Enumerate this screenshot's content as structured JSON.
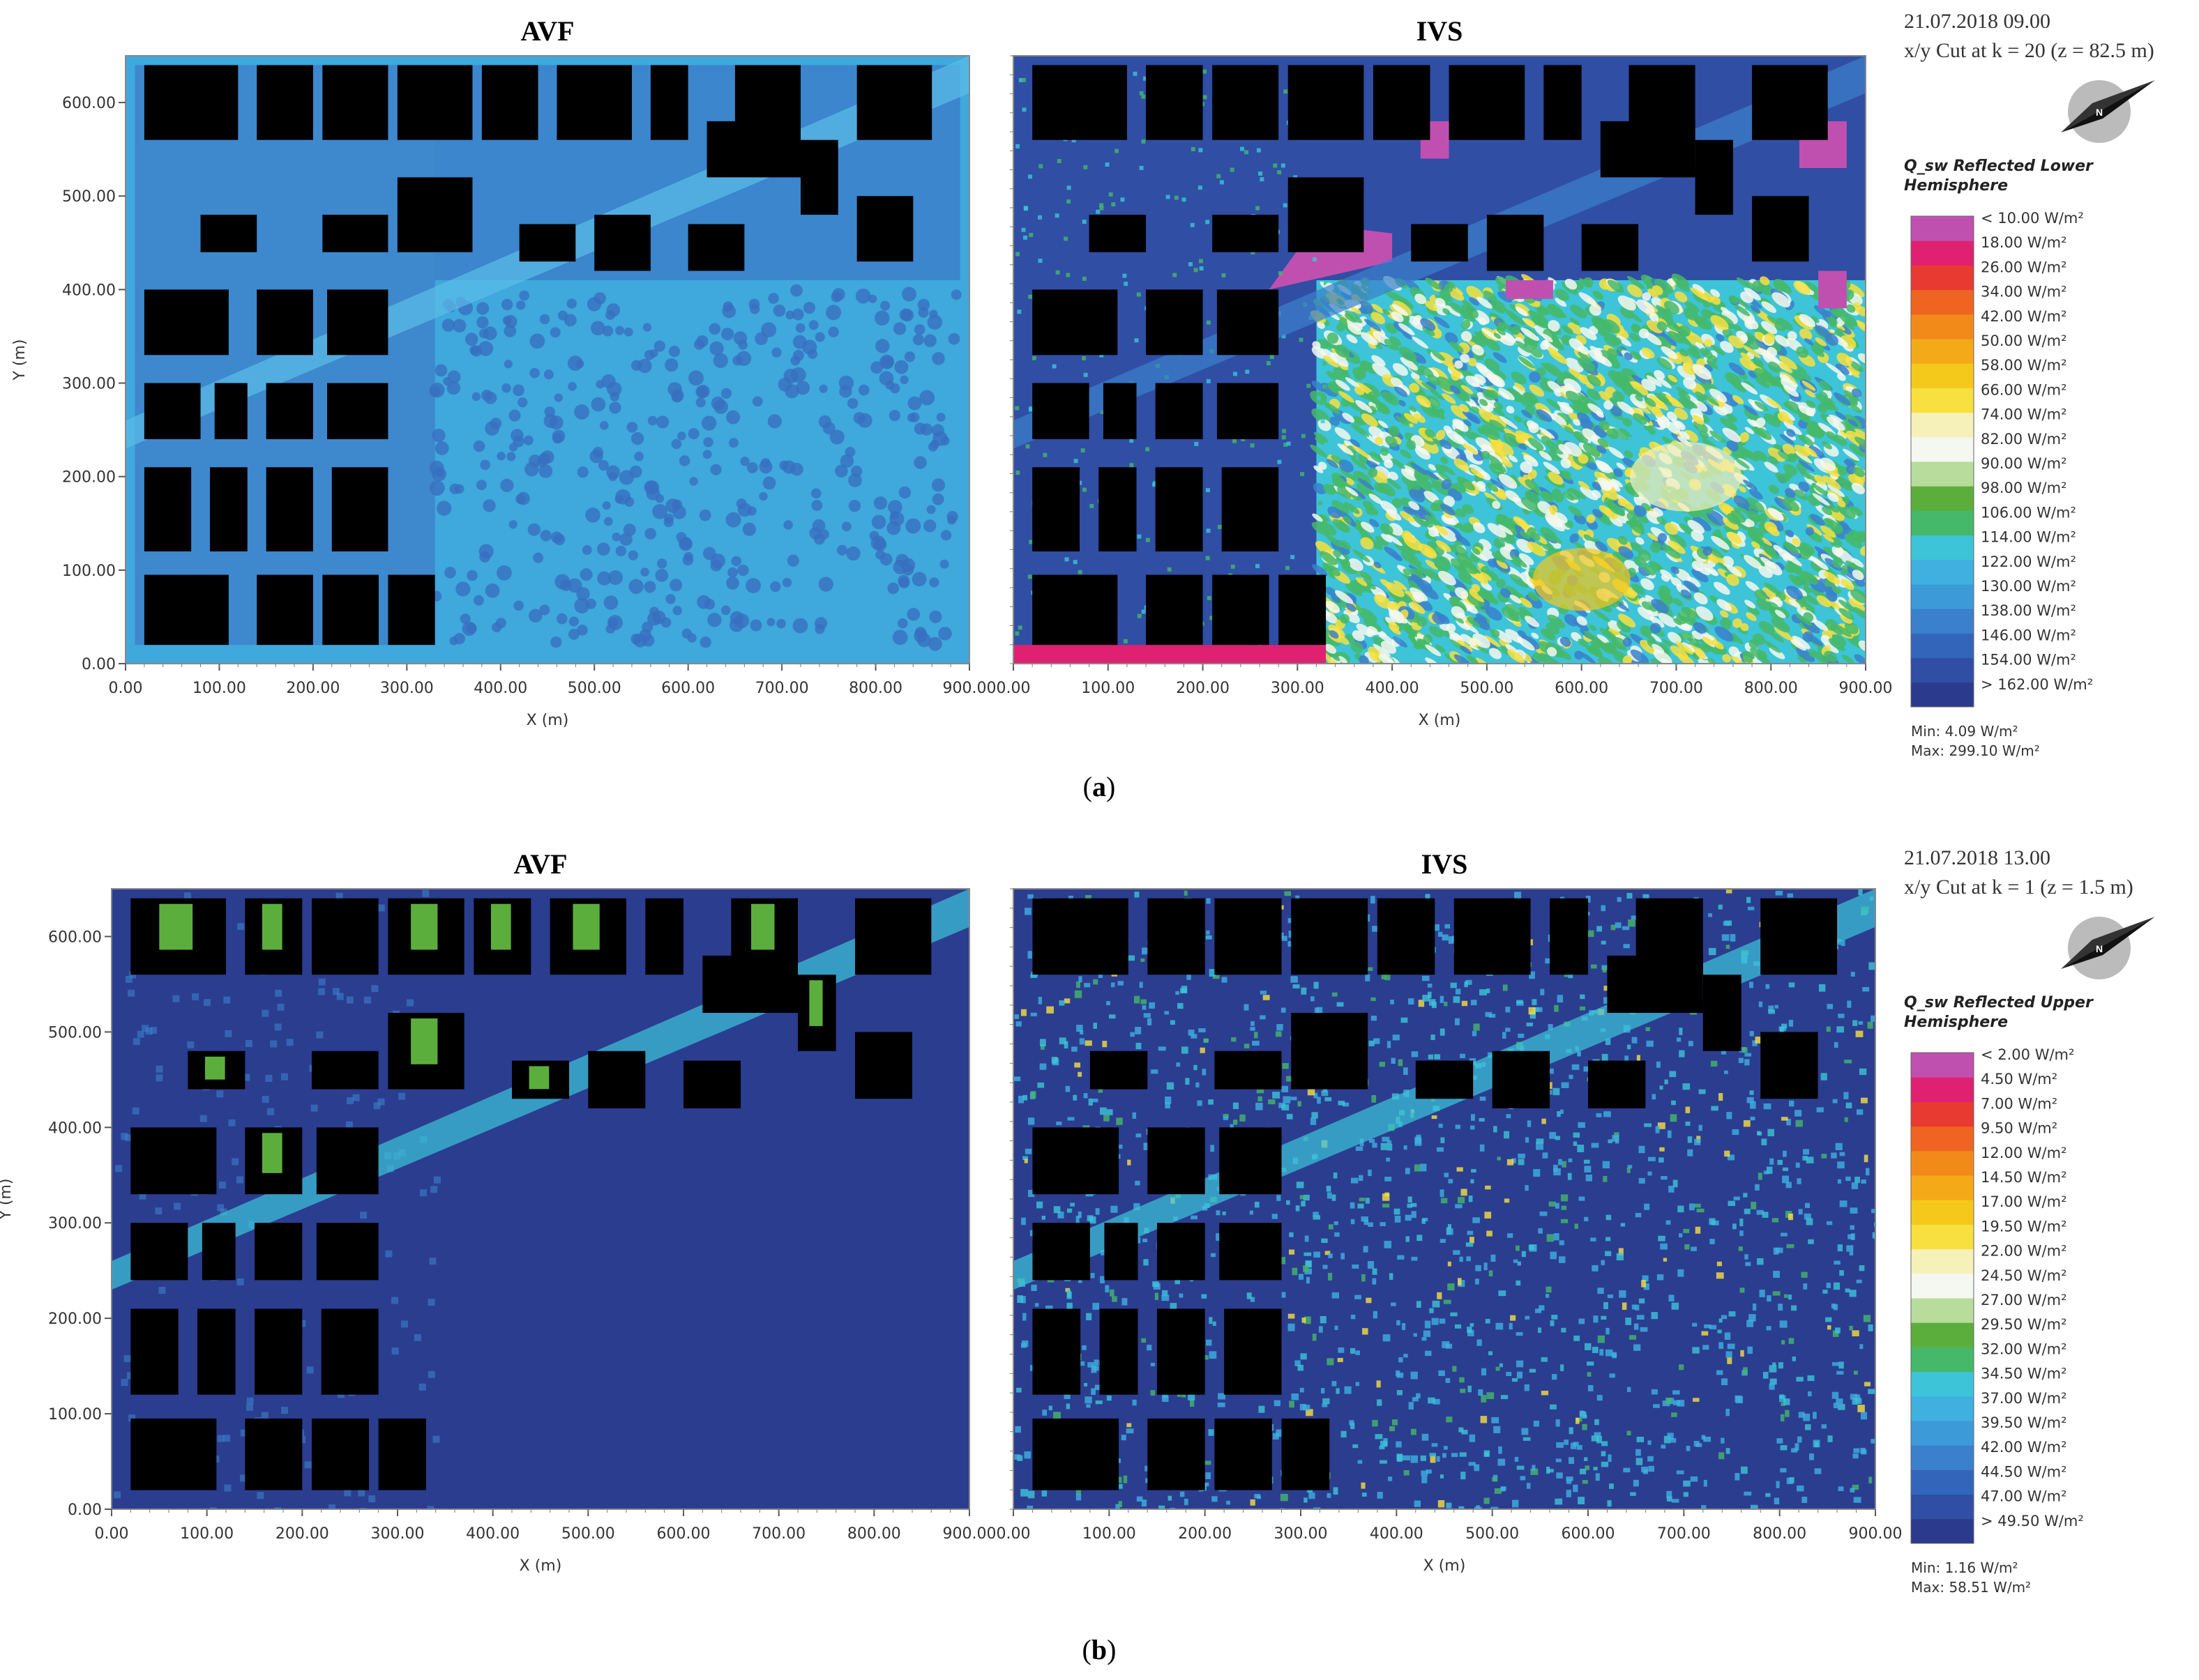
{
  "panels": [
    {
      "label_letter": "a",
      "timestamp": "21.07.2018 09.00",
      "cut_label": "x/y Cut at k = 20 (z = 82.5 m)",
      "north": "N",
      "legend_title": [
        "Q_sw Reflected Lower",
        "Hemisphere"
      ],
      "legend_labels": [
        "< 10.00 W/m²",
        "18.00 W/m²",
        "26.00 W/m²",
        "34.00 W/m²",
        "42.00 W/m²",
        "50.00 W/m²",
        "58.00 W/m²",
        "66.00 W/m²",
        "74.00 W/m²",
        "82.00 W/m²",
        "90.00 W/m²",
        "98.00 W/m²",
        "106.00 W/m²",
        "114.00 W/m²",
        "122.00 W/m²",
        "130.00 W/m²",
        "138.00 W/m²",
        "146.00 W/m²",
        "154.00 W/m²",
        "> 162.00 W/m²"
      ],
      "legend_colors": [
        "#2b3a8c",
        "#2f4ea4",
        "#3366bb",
        "#3a80cc",
        "#3d9ad8",
        "#3fb0e0",
        "#3dc4d8",
        "#45b86a",
        "#5cae3c",
        "#b8dc9c",
        "#f4f8f0",
        "#f6f1b8",
        "#f7e040",
        "#f5c81c",
        "#f4aa18",
        "#f28a1a",
        "#ee6420",
        "#e83a30",
        "#e02070",
        "#c050b0"
      ],
      "min_label": "Min: 4.09 W/m²",
      "max_label": "Max: 299.10 W/m²"
    },
    {
      "label_letter": "b",
      "timestamp": "21.07.2018 13.00",
      "cut_label": "x/y Cut at k = 1 (z = 1.5 m)",
      "north": "N",
      "legend_title": [
        "Q_sw Reflected Upper",
        "Hemisphere"
      ],
      "legend_labels": [
        "< 2.00 W/m²",
        "4.50 W/m²",
        "7.00 W/m²",
        "9.50 W/m²",
        "12.00 W/m²",
        "14.50 W/m²",
        "17.00 W/m²",
        "19.50 W/m²",
        "22.00 W/m²",
        "24.50 W/m²",
        "27.00 W/m²",
        "29.50 W/m²",
        "32.00 W/m²",
        "34.50 W/m²",
        "37.00 W/m²",
        "39.50 W/m²",
        "42.00 W/m²",
        "44.50 W/m²",
        "47.00 W/m²",
        "> 49.50 W/m²"
      ],
      "legend_colors": [
        "#2b3a8c",
        "#2f4ea4",
        "#3366bb",
        "#3a80cc",
        "#3d9ad8",
        "#3fb0e0",
        "#3dc4d8",
        "#45b86a",
        "#5cae3c",
        "#b8dc9c",
        "#f4f8f0",
        "#f6f1b8",
        "#f7e040",
        "#f5c81c",
        "#f4aa18",
        "#f28a1a",
        "#ee6420",
        "#e83a30",
        "#e02070",
        "#c050b0"
      ],
      "min_label": "Min: 1.16 W/m²",
      "max_label": "Max: 58.51 W/m²"
    }
  ],
  "chart_data": [
    {
      "type": "heatmap",
      "panel": "a",
      "title": "AVF",
      "xlabel": "X (m)",
      "ylabel": "Y (m)",
      "xlim": [
        0,
        900
      ],
      "ylim": [
        0,
        650
      ],
      "x_ticks": [
        "0.00",
        "100.00",
        "200.00",
        "300.00",
        "400.00",
        "500.00",
        "600.00",
        "700.00",
        "800.00",
        "900.00"
      ],
      "y_ticks": [
        "0.00",
        "100.00",
        "200.00",
        "300.00",
        "400.00",
        "500.00",
        "600.00"
      ]
    },
    {
      "type": "heatmap",
      "panel": "a",
      "title": "IVS",
      "xlabel": "X (m)",
      "ylabel": "",
      "xlim": [
        0,
        900
      ],
      "ylim": [
        0,
        650
      ],
      "x_ticks": [
        "0.00",
        "100.00",
        "200.00",
        "300.00",
        "400.00",
        "500.00",
        "600.00",
        "700.00",
        "800.00",
        "900.00"
      ],
      "y_ticks": []
    },
    {
      "type": "heatmap",
      "panel": "b",
      "title": "AVF",
      "xlabel": "X (m)",
      "ylabel": "Y (m)",
      "xlim": [
        0,
        900
      ],
      "ylim": [
        0,
        650
      ],
      "x_ticks": [
        "0.00",
        "100.00",
        "200.00",
        "300.00",
        "400.00",
        "500.00",
        "600.00",
        "700.00",
        "800.00",
        "900.00"
      ],
      "y_ticks": [
        "0.00",
        "100.00",
        "200.00",
        "300.00",
        "400.00",
        "500.00",
        "600.00"
      ]
    },
    {
      "type": "heatmap",
      "panel": "b",
      "title": "IVS",
      "xlabel": "X (m)",
      "ylabel": "",
      "xlim": [
        0,
        900
      ],
      "ylim": [
        0,
        650
      ],
      "x_ticks": [
        "0.00",
        "100.00",
        "200.00",
        "300.00",
        "400.00",
        "500.00",
        "600.00",
        "700.00",
        "800.00",
        "900.00"
      ],
      "y_ticks": []
    }
  ]
}
